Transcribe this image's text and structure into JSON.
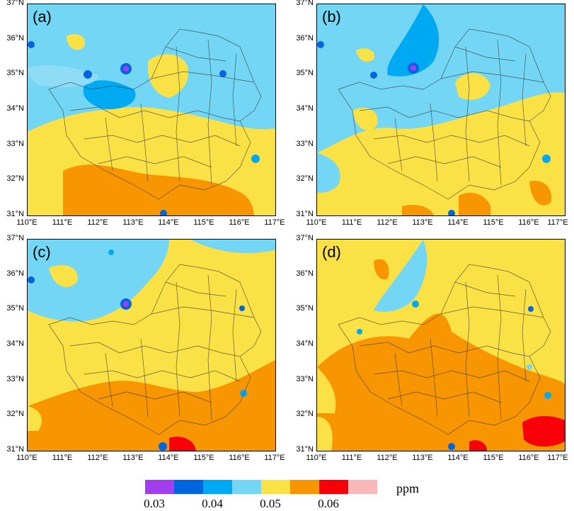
{
  "colors": {
    "ocean": "#73d6f4",
    "blue_mid": "#00aaf3",
    "blue_dark": "#0066e0",
    "purple": "#a23ef0",
    "yellow": "#fae146",
    "orange": "#f79600",
    "red": "#f80008",
    "pink": "#fbb8b8"
  },
  "panels": [
    {
      "label": "(a)",
      "level": "high",
      "variant": "a"
    },
    {
      "label": "(b)",
      "level": "low",
      "variant": "b"
    },
    {
      "label": "(c)",
      "level": "mid",
      "variant": "c"
    },
    {
      "label": "(d)",
      "level": "max",
      "variant": "d"
    }
  ],
  "axes": {
    "lat_ticks": [
      "37°N",
      "36°N",
      "35°N",
      "34°N",
      "33°N",
      "32°N",
      "31°N"
    ],
    "lon_ticks": [
      "110°E",
      "111°E",
      "112°E",
      "113°E",
      "114°E",
      "115°E",
      "116°E",
      "117°E"
    ]
  },
  "colorbar": {
    "colors": [
      "#a23ef0",
      "#0066e0",
      "#00aaf3",
      "#73d6f4",
      "#fae146",
      "#f79600",
      "#f80008",
      "#fbb8b8"
    ],
    "labels": [
      "0.03",
      "0.04",
      "0.05",
      "0.06"
    ],
    "units": "ppm"
  }
}
